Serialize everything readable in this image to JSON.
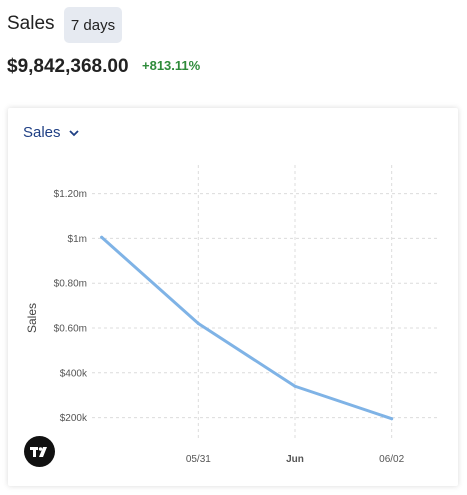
{
  "header": {
    "title": "Sales",
    "range_label": "7 days",
    "total": "$9,842,368.00",
    "change": "+813.11%"
  },
  "dropdown": {
    "label": "Sales",
    "icon": "chevron-down-icon"
  },
  "colors": {
    "line": "#7fb3e6",
    "accent": "#1f3f84",
    "positive": "#2e8b3a"
  },
  "chart_data": {
    "type": "line",
    "ylabel": "Sales",
    "ylim": [
      100000,
      1350000
    ],
    "yticks": [
      {
        "value": 200000,
        "label": "$200k"
      },
      {
        "value": 400000,
        "label": "$400k"
      },
      {
        "value": 600000,
        "label": "$0.60m"
      },
      {
        "value": 800000,
        "label": "$0.80m"
      },
      {
        "value": 1000000,
        "label": "$1m"
      },
      {
        "value": 1200000,
        "label": "$1.20m"
      }
    ],
    "xticks": [
      {
        "x": 1,
        "label": "05/31",
        "bold": false
      },
      {
        "x": 2,
        "label": "Jun",
        "bold": true
      },
      {
        "x": 3,
        "label": "06/02",
        "bold": false
      }
    ],
    "xlim": [
      -0.1,
      3.5
    ],
    "series": [
      {
        "points": [
          {
            "x": 0.0,
            "y": 1005000
          },
          {
            "x": 1.0,
            "y": 620000
          },
          {
            "x": 2.0,
            "y": 340000
          },
          {
            "x": 3.0,
            "y": 195000
          }
        ]
      }
    ],
    "grid": true,
    "watermark_icon": "tradingview-logo-icon"
  }
}
